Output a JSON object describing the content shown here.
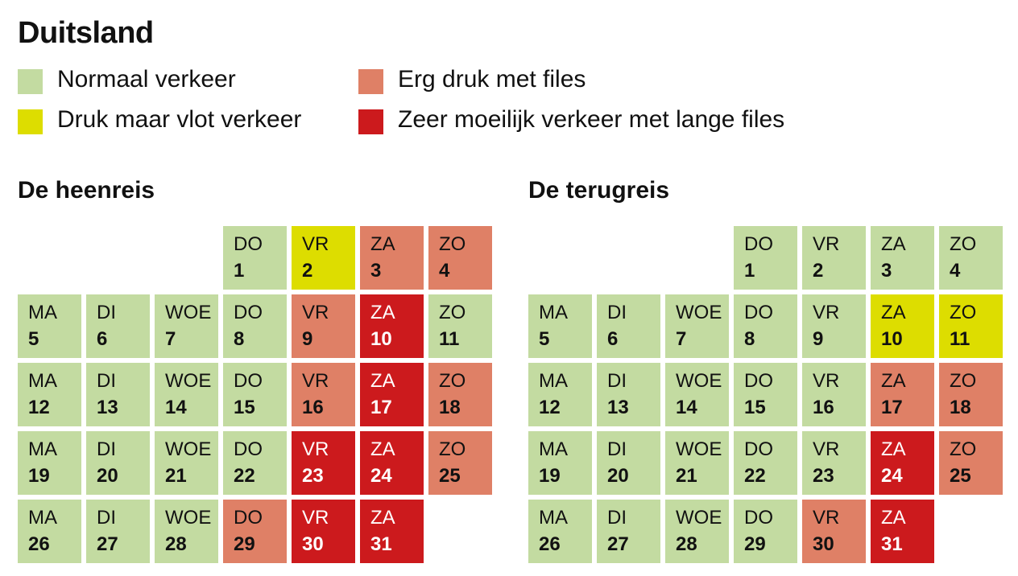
{
  "title": "Duitsland",
  "colors": {
    "normaal": "#c3dba1",
    "druk": "#dddd00",
    "erg_druk": "#df8066",
    "zeer_moeilijk": "#cc1a1d"
  },
  "legend": [
    {
      "level": "normaal",
      "label": "Normaal verkeer"
    },
    {
      "level": "druk",
      "label": "Druk maar vlot verkeer"
    },
    {
      "level": "erg_druk",
      "label": "Erg druk met files"
    },
    {
      "level": "zeer_moeilijk",
      "label": "Zeer moeilijk verkeer met lange files"
    }
  ],
  "chart_data": [
    {
      "type": "heatmap",
      "title": "De heenreis",
      "weekday_labels": [
        "MA",
        "DI",
        "WOE",
        "DO",
        "VR",
        "ZA",
        "ZO"
      ],
      "days": [
        {
          "day": 1,
          "weekday": "DO",
          "level": "normaal"
        },
        {
          "day": 2,
          "weekday": "VR",
          "level": "druk"
        },
        {
          "day": 3,
          "weekday": "ZA",
          "level": "erg_druk"
        },
        {
          "day": 4,
          "weekday": "ZO",
          "level": "erg_druk"
        },
        {
          "day": 5,
          "weekday": "MA",
          "level": "normaal"
        },
        {
          "day": 6,
          "weekday": "DI",
          "level": "normaal"
        },
        {
          "day": 7,
          "weekday": "WOE",
          "level": "normaal"
        },
        {
          "day": 8,
          "weekday": "DO",
          "level": "normaal"
        },
        {
          "day": 9,
          "weekday": "VR",
          "level": "erg_druk"
        },
        {
          "day": 10,
          "weekday": "ZA",
          "level": "zeer_moeilijk"
        },
        {
          "day": 11,
          "weekday": "ZO",
          "level": "normaal"
        },
        {
          "day": 12,
          "weekday": "MA",
          "level": "normaal"
        },
        {
          "day": 13,
          "weekday": "DI",
          "level": "normaal"
        },
        {
          "day": 14,
          "weekday": "WOE",
          "level": "normaal"
        },
        {
          "day": 15,
          "weekday": "DO",
          "level": "normaal"
        },
        {
          "day": 16,
          "weekday": "VR",
          "level": "erg_druk"
        },
        {
          "day": 17,
          "weekday": "ZA",
          "level": "zeer_moeilijk"
        },
        {
          "day": 18,
          "weekday": "ZO",
          "level": "erg_druk"
        },
        {
          "day": 19,
          "weekday": "MA",
          "level": "normaal"
        },
        {
          "day": 20,
          "weekday": "DI",
          "level": "normaal"
        },
        {
          "day": 21,
          "weekday": "WOE",
          "level": "normaal"
        },
        {
          "day": 22,
          "weekday": "DO",
          "level": "normaal"
        },
        {
          "day": 23,
          "weekday": "VR",
          "level": "zeer_moeilijk"
        },
        {
          "day": 24,
          "weekday": "ZA",
          "level": "zeer_moeilijk"
        },
        {
          "day": 25,
          "weekday": "ZO",
          "level": "erg_druk"
        },
        {
          "day": 26,
          "weekday": "MA",
          "level": "normaal"
        },
        {
          "day": 27,
          "weekday": "DI",
          "level": "normaal"
        },
        {
          "day": 28,
          "weekday": "WOE",
          "level": "normaal"
        },
        {
          "day": 29,
          "weekday": "DO",
          "level": "erg_druk"
        },
        {
          "day": 30,
          "weekday": "VR",
          "level": "zeer_moeilijk"
        },
        {
          "day": 31,
          "weekday": "ZA",
          "level": "zeer_moeilijk"
        }
      ]
    },
    {
      "type": "heatmap",
      "title": "De terugreis",
      "weekday_labels": [
        "MA",
        "DI",
        "WOE",
        "DO",
        "VR",
        "ZA",
        "ZO"
      ],
      "days": [
        {
          "day": 1,
          "weekday": "DO",
          "level": "normaal"
        },
        {
          "day": 2,
          "weekday": "VR",
          "level": "normaal"
        },
        {
          "day": 3,
          "weekday": "ZA",
          "level": "normaal"
        },
        {
          "day": 4,
          "weekday": "ZO",
          "level": "normaal"
        },
        {
          "day": 5,
          "weekday": "MA",
          "level": "normaal"
        },
        {
          "day": 6,
          "weekday": "DI",
          "level": "normaal"
        },
        {
          "day": 7,
          "weekday": "WOE",
          "level": "normaal"
        },
        {
          "day": 8,
          "weekday": "DO",
          "level": "normaal"
        },
        {
          "day": 9,
          "weekday": "VR",
          "level": "normaal"
        },
        {
          "day": 10,
          "weekday": "ZA",
          "level": "druk"
        },
        {
          "day": 11,
          "weekday": "ZO",
          "level": "druk"
        },
        {
          "day": 12,
          "weekday": "MA",
          "level": "normaal"
        },
        {
          "day": 13,
          "weekday": "DI",
          "level": "normaal"
        },
        {
          "day": 14,
          "weekday": "WOE",
          "level": "normaal"
        },
        {
          "day": 15,
          "weekday": "DO",
          "level": "normaal"
        },
        {
          "day": 16,
          "weekday": "VR",
          "level": "normaal"
        },
        {
          "day": 17,
          "weekday": "ZA",
          "level": "erg_druk"
        },
        {
          "day": 18,
          "weekday": "ZO",
          "level": "erg_druk"
        },
        {
          "day": 19,
          "weekday": "MA",
          "level": "normaal"
        },
        {
          "day": 20,
          "weekday": "DI",
          "level": "normaal"
        },
        {
          "day": 21,
          "weekday": "WOE",
          "level": "normaal"
        },
        {
          "day": 22,
          "weekday": "DO",
          "level": "normaal"
        },
        {
          "day": 23,
          "weekday": "VR",
          "level": "normaal"
        },
        {
          "day": 24,
          "weekday": "ZA",
          "level": "zeer_moeilijk"
        },
        {
          "day": 25,
          "weekday": "ZO",
          "level": "erg_druk"
        },
        {
          "day": 26,
          "weekday": "MA",
          "level": "normaal"
        },
        {
          "day": 27,
          "weekday": "DI",
          "level": "normaal"
        },
        {
          "day": 28,
          "weekday": "WOE",
          "level": "normaal"
        },
        {
          "day": 29,
          "weekday": "DO",
          "level": "normaal"
        },
        {
          "day": 30,
          "weekday": "VR",
          "level": "erg_druk"
        },
        {
          "day": 31,
          "weekday": "ZA",
          "level": "zeer_moeilijk"
        }
      ]
    }
  ]
}
